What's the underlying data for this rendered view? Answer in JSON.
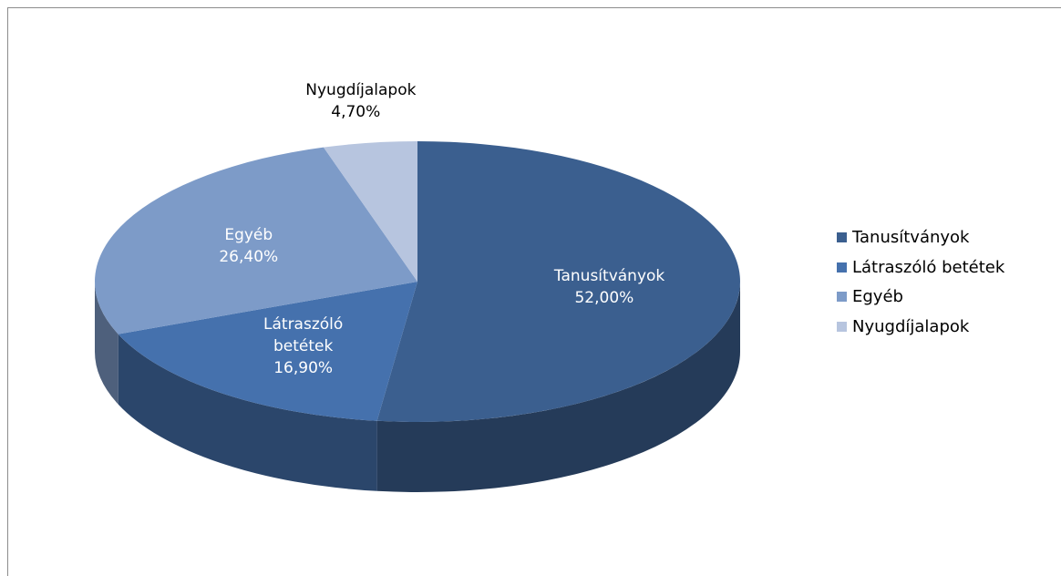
{
  "chart_data": {
    "type": "pie",
    "categories": [
      "Tanusítványok",
      "Látraszóló betétek",
      "Egyéb",
      "Nyugdíjalapok"
    ],
    "values": [
      52.0,
      16.9,
      26.4,
      4.7
    ],
    "value_labels": [
      "52,00%",
      "16,90%",
      "26,40%",
      "4,70%"
    ],
    "colors": [
      "#3b5f8f",
      "#4571ad",
      "#7d9bc8",
      "#b7c5df"
    ],
    "legend": "right"
  }
}
